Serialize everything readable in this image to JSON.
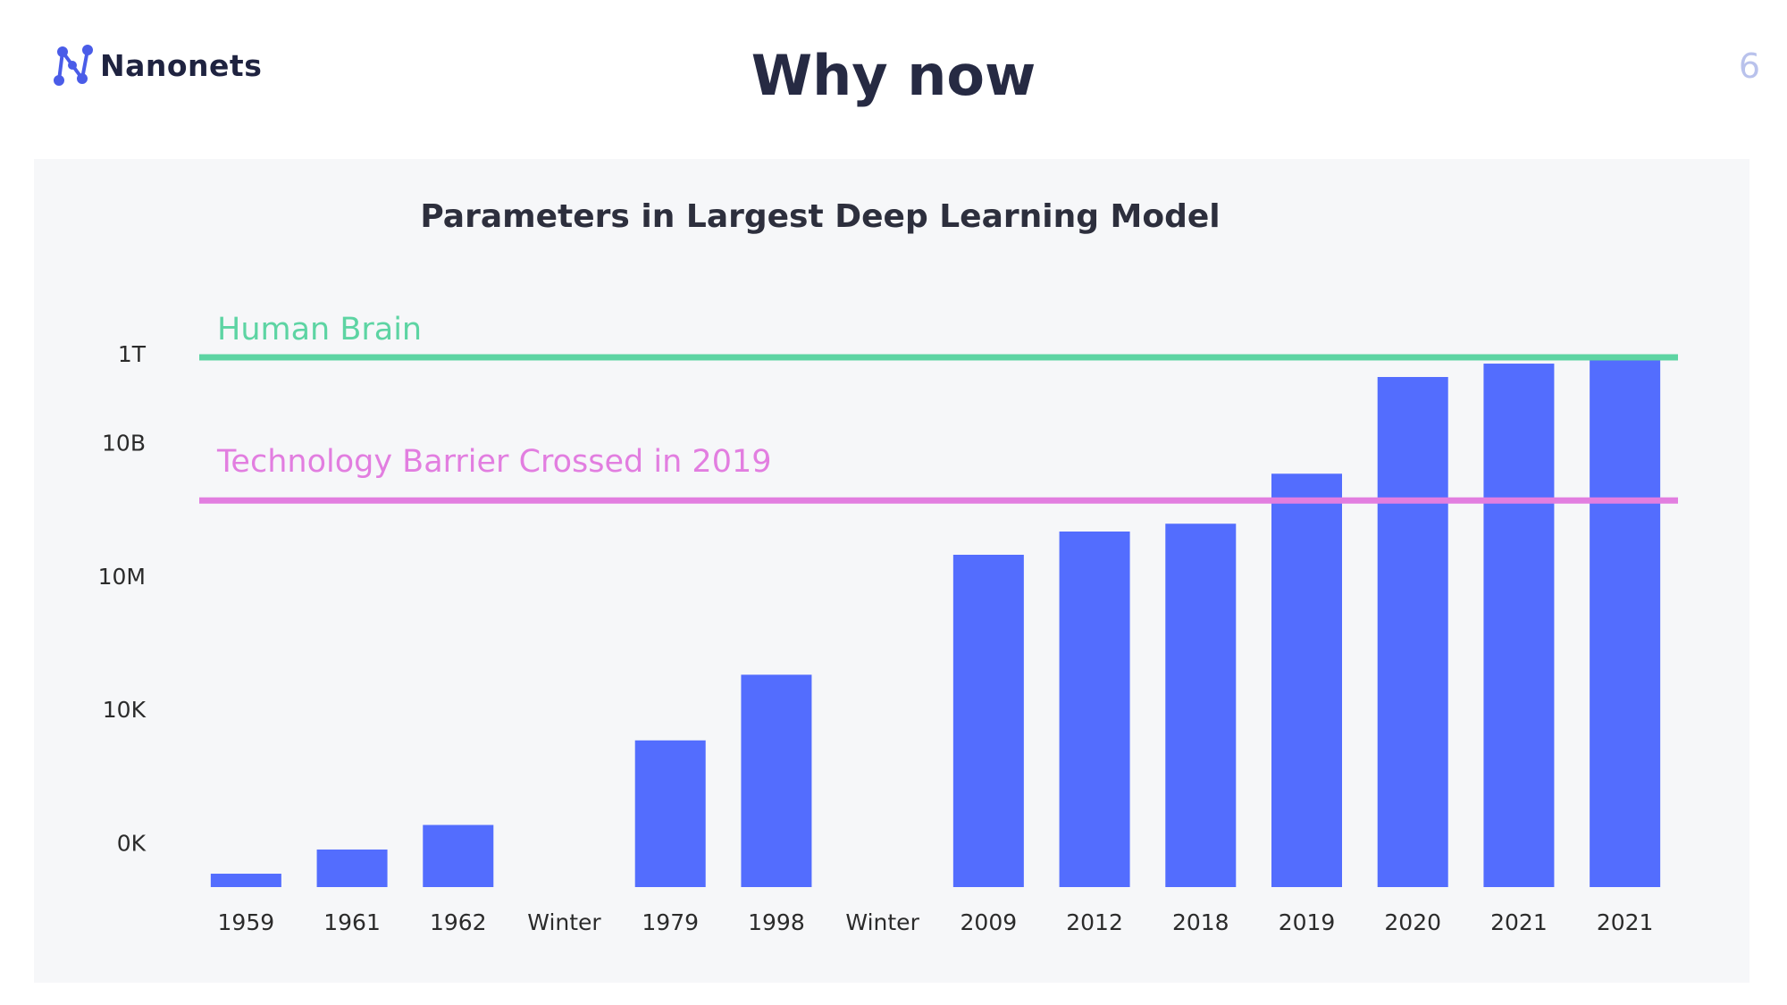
{
  "header": {
    "logo_text": "Nanonets",
    "title": "Why now",
    "page_number": "6"
  },
  "colors": {
    "bar": "#536dfe",
    "human_brain": "#5dd4a3",
    "barrier": "#e27ee0",
    "panel_background": "#f6f7f9",
    "logo": "#4a5ce8"
  },
  "chart_data": {
    "type": "bar",
    "scale": "log",
    "title": "Parameters in Largest Deep Learning Model",
    "xlabel": "",
    "ylabel": "",
    "y_ticks": [
      {
        "label": "0K",
        "value": 10
      },
      {
        "label": "10K",
        "value": 10000
      },
      {
        "label": "10M",
        "value": 10000000
      },
      {
        "label": "10B",
        "value": 10000000000
      },
      {
        "label": "1T",
        "value": 1000000000000
      }
    ],
    "ylim": [
      1,
      1000000000000
    ],
    "categories": [
      "1959",
      "1961",
      "1962",
      "Winter",
      "1979",
      "1998",
      "Winter",
      "2009",
      "2012",
      "2018",
      "2019",
      "2020",
      "2021",
      "2021"
    ],
    "values": [
      2,
      7,
      25,
      null,
      2000,
      60000,
      null,
      30000000,
      100000000,
      150000000,
      2000000000,
      300000000000,
      600000000000,
      800000000000
    ],
    "reference_lines": [
      {
        "label": "Human Brain",
        "value": 1000000000000,
        "color": "#5dd4a3"
      },
      {
        "label": "Technology Barrier Crossed in 2019",
        "value": 500000000,
        "color": "#e27ee0"
      }
    ],
    "grid": false,
    "legend": "none"
  }
}
